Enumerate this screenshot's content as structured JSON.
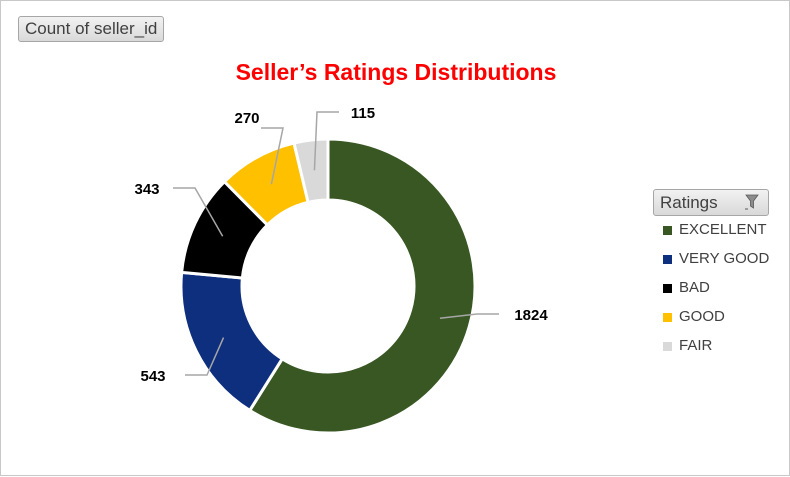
{
  "field_button": {
    "label": "Count of seller_id"
  },
  "chart_data": {
    "type": "pie",
    "variant": "doughnut",
    "title": "Seller’s Ratings Distributions",
    "categories": [
      "EXCELLENT",
      "VERY GOOD",
      "BAD",
      "GOOD",
      "FAIR"
    ],
    "values": [
      1824,
      543,
      343,
      270,
      115
    ],
    "colors": [
      "#385723",
      "#0e2f7e",
      "#000000",
      "#ffc000",
      "#d9d9d9"
    ],
    "data_labels": [
      "1824",
      "543",
      "343",
      "270",
      "115"
    ],
    "legend": {
      "title": "Ratings",
      "position": "right",
      "filter_icon": "filter-icon"
    }
  }
}
